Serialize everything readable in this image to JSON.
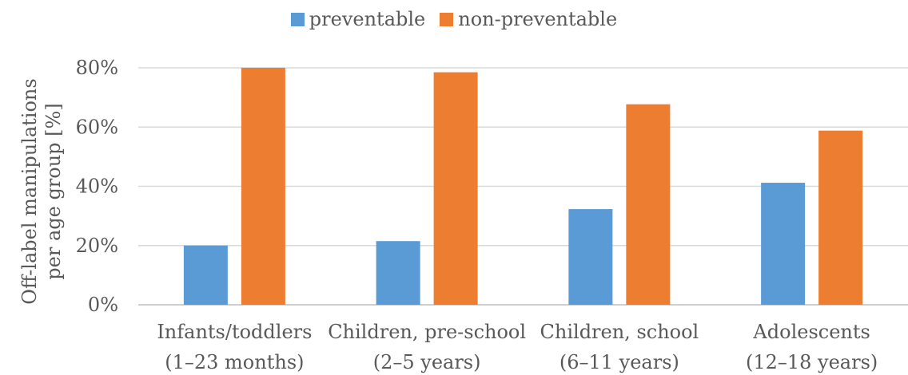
{
  "chart_data": {
    "type": "bar",
    "title": "",
    "categories": [
      [
        "Infants/toddlers",
        "(1–23 months)"
      ],
      [
        "Children, pre-school",
        "(2–5 years)"
      ],
      [
        "Children, school",
        "(6–11 years)"
      ],
      [
        "Adolescents",
        "(12–18 years)"
      ]
    ],
    "series": [
      {
        "name": "preventable",
        "color": "#5B9BD5",
        "values": [
          20,
          21.5,
          32.3,
          41.2
        ]
      },
      {
        "name": "non-preventable",
        "color": "#ED7D31",
        "values": [
          80,
          78.5,
          67.7,
          58.8
        ]
      }
    ],
    "ylabel_lines": [
      "Off-label manipulations",
      "per age group [%]"
    ],
    "ylim": [
      0,
      80
    ],
    "yticks": [
      "0%",
      "20%",
      "40%",
      "60%",
      "80%"
    ],
    "ytick_values": [
      0,
      20,
      40,
      60,
      80
    ],
    "grid": true,
    "legend_position": "top"
  }
}
